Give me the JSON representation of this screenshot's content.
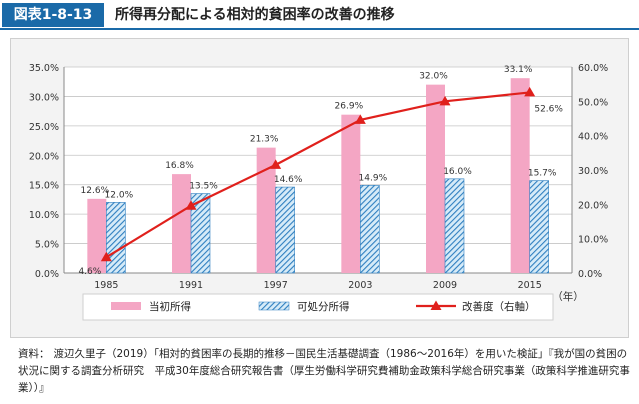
{
  "header": {
    "figure_label": "図表1-8-13",
    "title": "所得再分配による相対的貧困率の改善の推移"
  },
  "chart_data": {
    "type": "bar",
    "categories": [
      "1985",
      "1991",
      "1997",
      "2003",
      "2009",
      "2015"
    ],
    "x_unit": "（年）",
    "series": [
      {
        "name": "当初所得",
        "axis": "left",
        "values": [
          12.6,
          16.8,
          21.3,
          26.9,
          32.0,
          33.1
        ],
        "labels": [
          "12.6%",
          "16.8%",
          "21.3%",
          "26.9%",
          "32.0%",
          "33.1%"
        ],
        "color": "#f4a6c4"
      },
      {
        "name": "可処分所得",
        "axis": "left",
        "values": [
          12.0,
          13.5,
          14.6,
          14.9,
          16.0,
          15.7
        ],
        "labels": [
          "12.0%",
          "13.5%",
          "14.6%",
          "14.9%",
          "16.0%",
          "15.7%"
        ],
        "color": "#3e8cc7"
      },
      {
        "name": "改善度（右軸）",
        "type": "line",
        "axis": "right",
        "values": [
          4.6,
          19.6,
          31.5,
          44.6,
          50.0,
          52.6
        ],
        "labels": [
          "4.6%",
          "",
          "",
          "",
          "",
          "52.6%"
        ],
        "color": "#e0201c"
      }
    ],
    "left_axis": {
      "ylim": [
        0,
        35
      ],
      "ticks": [
        "0.0%",
        "5.0%",
        "10.0%",
        "15.0%",
        "20.0%",
        "25.0%",
        "30.0%",
        "35.0%"
      ]
    },
    "right_axis": {
      "ylim": [
        0,
        60
      ],
      "ticks": [
        "0.0%",
        "10.0%",
        "20.0%",
        "30.0%",
        "40.0%",
        "50.0%",
        "60.0%"
      ]
    },
    "legend": [
      "当初所得",
      "可処分所得",
      "改善度（右軸）"
    ],
    "legend_position": "bottom"
  },
  "source": {
    "label": "資料：",
    "text": "渡辺久里子（2019）「相対的貧困率の長期的推移－国民生活基礎調査（1986～2016年）を用いた検証」『我が国の貧困の状況に関する調査分析研究　平成30年度総合研究報告書（厚生労働科学研究費補助金政策科学総合研究事業（政策科学推進研究事業））』"
  }
}
